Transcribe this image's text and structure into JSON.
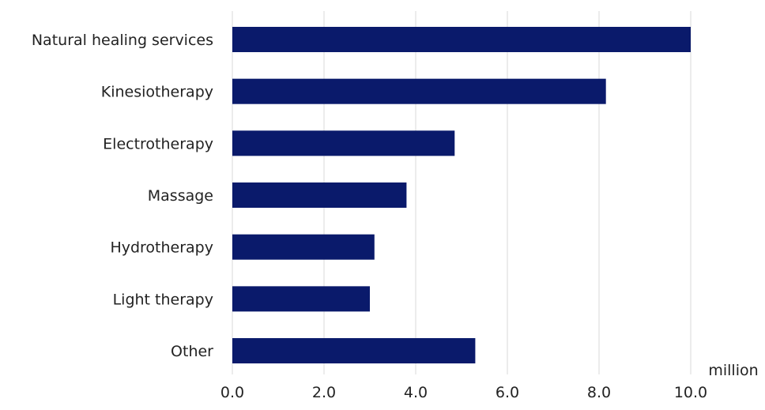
{
  "chart_data": {
    "type": "bar",
    "orientation": "horizontal",
    "categories": [
      "Natural healing services",
      "Kinesiotherapy",
      "Electrotherapy",
      "Massage",
      "Hydrotherapy",
      "Light therapy",
      "Other"
    ],
    "values": [
      10.0,
      8.15,
      4.85,
      3.8,
      3.1,
      3.0,
      5.3
    ],
    "x_ticks": [
      "0.0",
      "2.0",
      "4.0",
      "6.0",
      "8.0",
      "10.0"
    ],
    "xlim": [
      0,
      10
    ],
    "unit_label": "million",
    "bar_color": "#0a1a6b",
    "grid": "vertical",
    "grid_color": "#d9d9d9"
  }
}
